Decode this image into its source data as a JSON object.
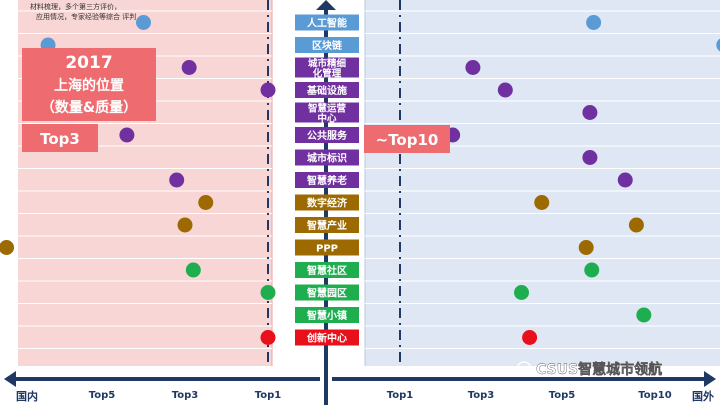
{
  "note": "材料梳理，多个第三方评价，应用情况，专家经验等综合 评判",
  "left_panel": {
    "year": "2017",
    "title_line1": "上海的位置",
    "title_line2": "（数量&质量）",
    "badge": "Top3"
  },
  "right_panel": {
    "badge": "~Top10"
  },
  "watermark": "CSUS智慧城市领航",
  "colors": {
    "left_bg": "#f9d6d6",
    "right_bg": "#dfe7f4",
    "axis": "#1f3864",
    "badge_red": "#ee6b6f",
    "blue": "#5b9bd5",
    "purple": "#7030a0",
    "brown": "#9c6a00",
    "green": "#1fae4f",
    "red": "#e8101a"
  },
  "chart_data": {
    "type": "scatter",
    "categories": [
      {
        "label": "人工智能",
        "color": "#5b9bd5"
      },
      {
        "label": "区块链",
        "color": "#5b9bd5"
      },
      {
        "label": "城市精细化管理",
        "color": "#7030a0"
      },
      {
        "label": "基础设施",
        "color": "#7030a0"
      },
      {
        "label": "智慧运营中心",
        "color": "#7030a0"
      },
      {
        "label": "公共服务",
        "color": "#7030a0"
      },
      {
        "label": "城市标识",
        "color": "#7030a0"
      },
      {
        "label": "智慧养老",
        "color": "#7030a0"
      },
      {
        "label": "数字经济",
        "color": "#9c6a00"
      },
      {
        "label": "智慧产业",
        "color": "#9c6a00"
      },
      {
        "label": "PPP",
        "color": "#9c6a00"
      },
      {
        "label": "智慧社区",
        "color": "#1fae4f"
      },
      {
        "label": "智慧园区",
        "color": "#1fae4f"
      },
      {
        "label": "智慧小镇",
        "color": "#1fae4f"
      },
      {
        "label": "创新中心",
        "color": "#e8101a"
      }
    ],
    "domestic_axis": {
      "end_label": "国内",
      "ticks": [
        "Top5",
        "Top3",
        "Top1"
      ]
    },
    "international_axis": {
      "end_label": "国外",
      "ticks": [
        "Top1",
        "Top3",
        "Top5",
        "Top10"
      ]
    },
    "domestic_points": [
      4,
      6.3,
      2.9,
      1,
      6.6,
      4.4,
      8.2,
      3.2,
      2.5,
      3,
      7.3,
      2.8,
      1,
      8.4,
      1
    ],
    "international_points": [
      6.7,
      13.7,
      2.8,
      3.6,
      6.5,
      2.3,
      6.5,
      8.4,
      4.5,
      9,
      6.3,
      6.6,
      4,
      9.4,
      4.2
    ]
  }
}
